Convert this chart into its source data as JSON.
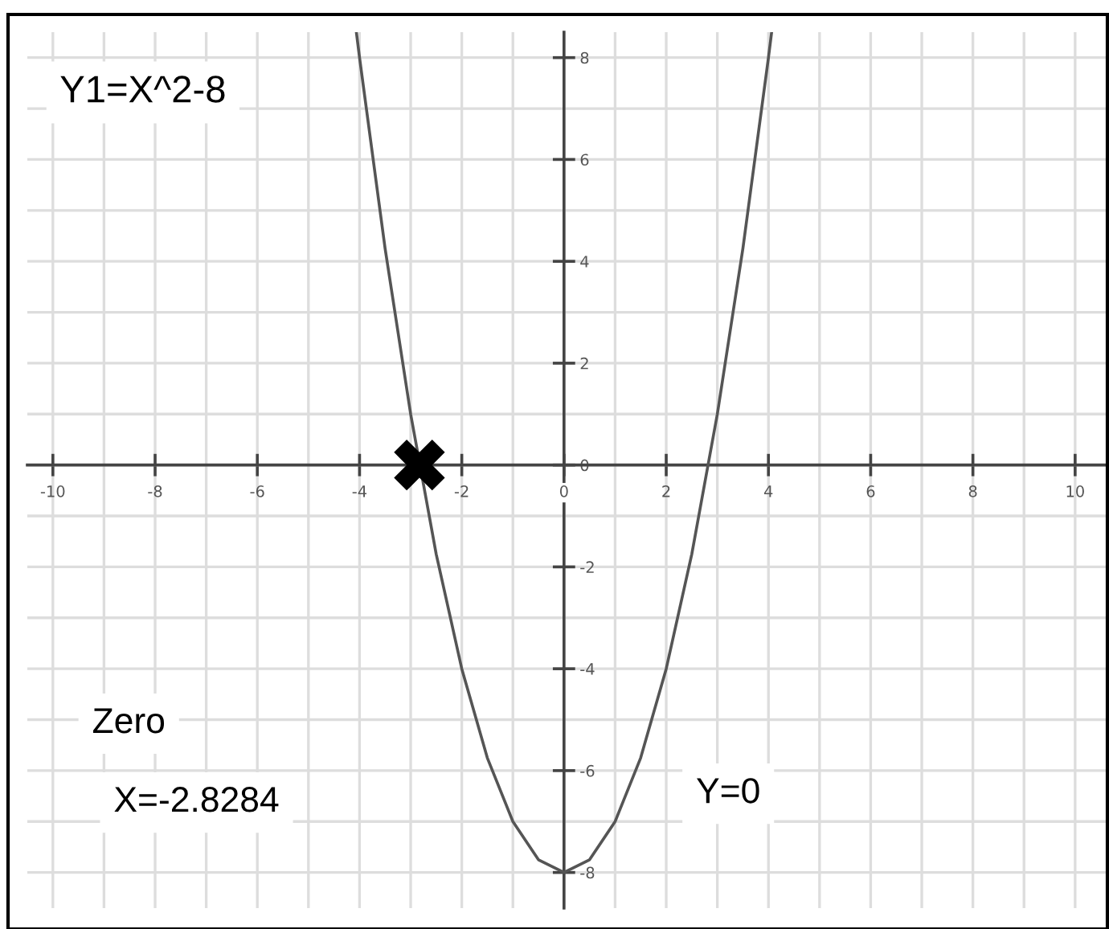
{
  "chart_data": {
    "type": "line",
    "annotations": [
      "Y1=X^2-8",
      "Zero",
      "X=-2.8284",
      "Y=0"
    ],
    "series": [
      {
        "type": "line",
        "color": "#555555",
        "x": [
          -4.06,
          -4,
          -3.5,
          -3,
          -2.5,
          -2,
          -1.5,
          -1,
          -0.5,
          0,
          0.5,
          1,
          1.5,
          2,
          2.5,
          3,
          3.5,
          4,
          4.06
        ],
        "values": [
          8.48,
          8,
          4.25,
          1,
          -1.75,
          -4,
          -5.75,
          -7,
          -7.75,
          -8,
          -7.75,
          -7,
          -5.75,
          -4,
          -1.75,
          1,
          4.25,
          8,
          8.48
        ]
      },
      {
        "type": "scatter",
        "color": "#000000",
        "marker": "cross",
        "x": [
          -2.8284
        ],
        "values": [
          0
        ]
      }
    ],
    "xlim": [
      -10.5,
      10.6
    ],
    "ylim": [
      -8.7,
      8.5
    ],
    "xticks": [
      -10,
      {
        "value": -9,
        "label": null
      },
      -8,
      {
        "value": -7,
        "label": null
      },
      -6,
      {
        "value": -5,
        "label": null
      },
      -4,
      {
        "value": -3,
        "label": null
      },
      -2,
      {
        "value": -1,
        "label": null
      },
      {
        "value": 0,
        "label": "0"
      },
      {
        "value": 1,
        "label": null
      },
      2,
      {
        "value": 3,
        "label": null
      },
      4,
      {
        "value": 5,
        "label": null
      },
      6,
      {
        "value": 7,
        "label": null
      },
      8,
      {
        "value": 9,
        "label": null
      },
      10
    ],
    "yticks": [
      {
        "value": -8,
        "label": "-8"
      },
      {
        "value": -7,
        "label": null
      },
      -6,
      {
        "value": -5,
        "label": null
      },
      -4,
      {
        "value": -3,
        "label": null
      },
      -2,
      {
        "value": -1,
        "label": null
      },
      {
        "value": 0,
        "label": "0"
      },
      {
        "value": 1,
        "label": null
      },
      2,
      {
        "value": 3,
        "label": null
      },
      4,
      {
        "value": 5,
        "label": null
      },
      6,
      {
        "value": 7,
        "label": null
      },
      8
    ],
    "grid": true
  }
}
